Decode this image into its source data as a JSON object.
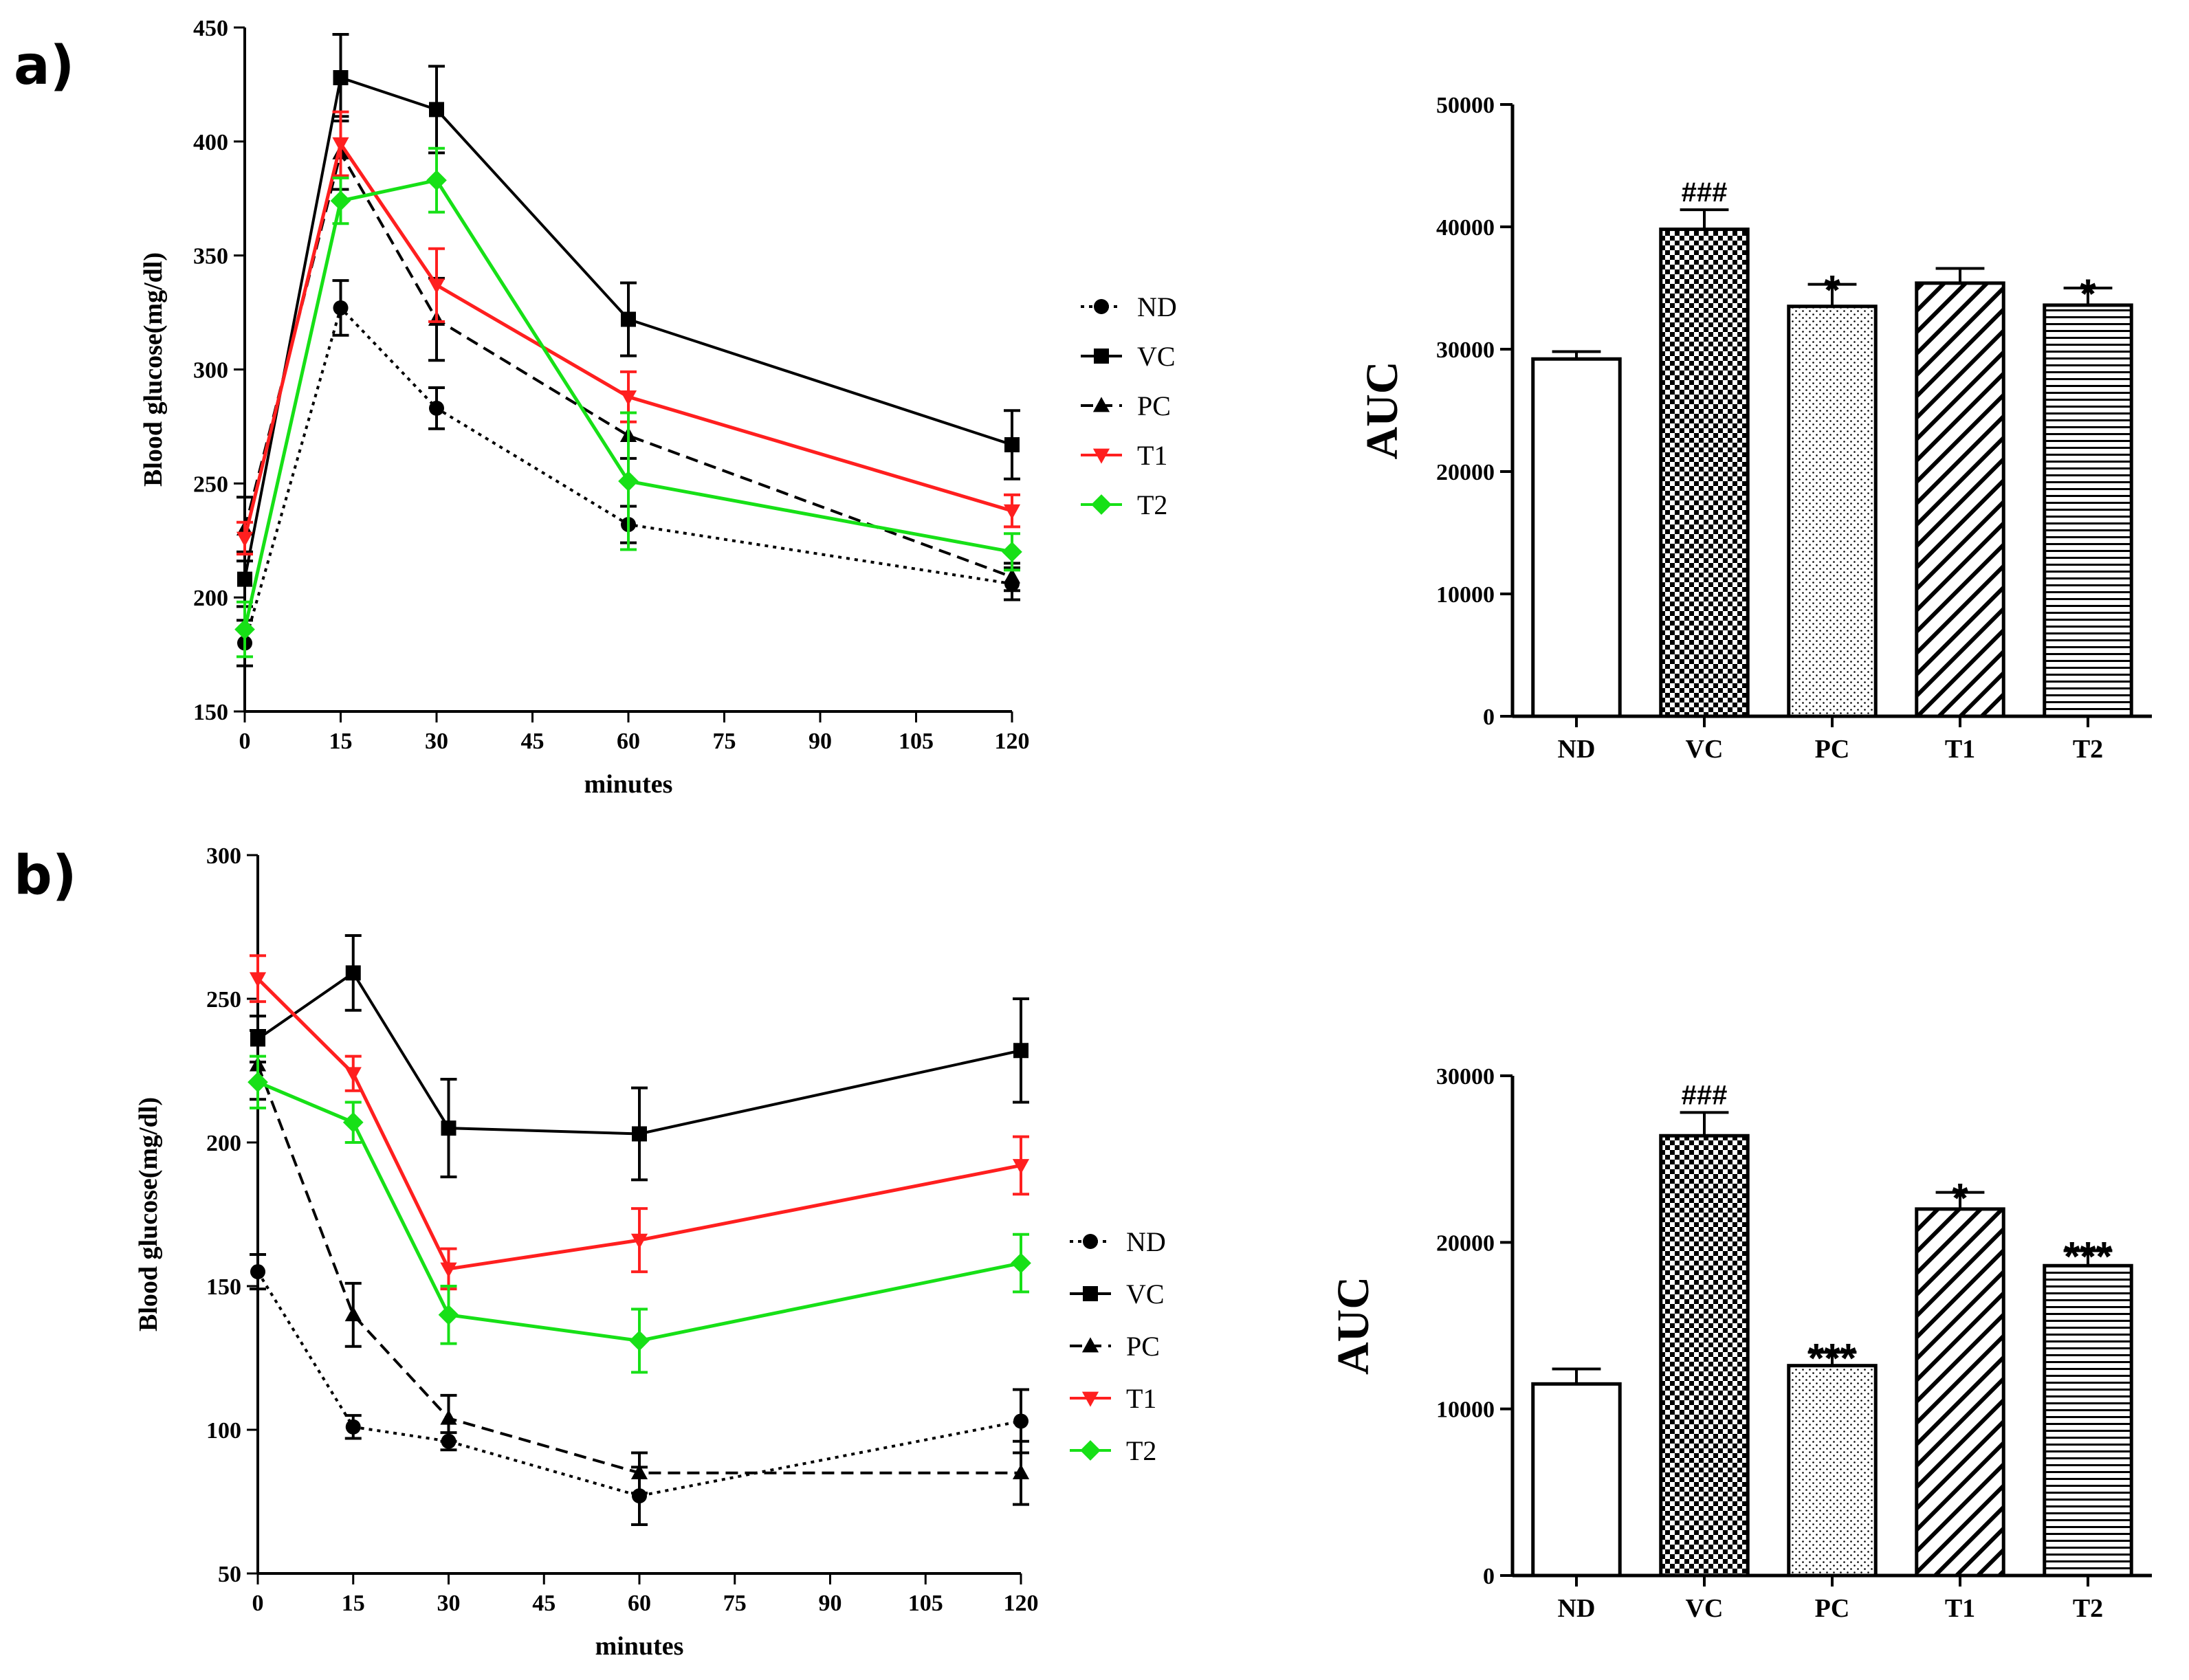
{
  "figure": {
    "panel_labels": [
      "a)",
      "b)"
    ],
    "colors": {
      "ND": "#000000",
      "VC": "#000000",
      "PC": "#000000",
      "T1": "#ff1f1f",
      "T2": "#17e017"
    }
  },
  "chart_data": [
    {
      "id": "a_line",
      "type": "line",
      "title": "",
      "xlabel": "minutes",
      "ylabel": "Blood glucose(mg/dl)",
      "x": [
        0,
        15,
        30,
        60,
        120
      ],
      "xticks": [
        0,
        15,
        30,
        45,
        60,
        75,
        90,
        105,
        120
      ],
      "ylim": [
        150,
        450
      ],
      "yticks": [
        150,
        200,
        250,
        300,
        350,
        400,
        450
      ],
      "legend": "right",
      "series": [
        {
          "name": "ND",
          "marker": "circle",
          "dash": "dot",
          "color": "#000000",
          "values": [
            180,
            327,
            283,
            232,
            206
          ],
          "errors": [
            10,
            12,
            9,
            8,
            7
          ]
        },
        {
          "name": "VC",
          "marker": "square",
          "dash": "solid",
          "color": "#000000",
          "values": [
            208,
            428,
            414,
            322,
            267
          ],
          "errors": [
            12,
            19,
            19,
            16,
            15
          ]
        },
        {
          "name": "PC",
          "marker": "triangle-up",
          "dash": "dash",
          "color": "#000000",
          "values": [
            230,
            395,
            322,
            271,
            209
          ],
          "errors": [
            14,
            16,
            18,
            10,
            6
          ]
        },
        {
          "name": "T1",
          "marker": "triangle-down",
          "dash": "solid",
          "color": "#ff1f1f",
          "values": [
            226,
            399,
            337,
            288,
            238
          ],
          "errors": [
            7,
            14,
            16,
            11,
            7
          ]
        },
        {
          "name": "T2",
          "marker": "diamond",
          "dash": "solid",
          "color": "#17e017",
          "values": [
            186,
            374,
            383,
            251,
            220
          ],
          "errors": [
            12,
            10,
            14,
            30,
            8
          ]
        }
      ]
    },
    {
      "id": "a_bar",
      "type": "bar",
      "title": "",
      "xlabel": "",
      "ylabel": "AUC",
      "categories": [
        "ND",
        "VC",
        "PC",
        "T1",
        "T2"
      ],
      "values": [
        29200,
        39800,
        33500,
        35400,
        33600
      ],
      "errors": [
        600,
        1600,
        1800,
        1200,
        1400
      ],
      "patterns": [
        "none",
        "checker",
        "dots",
        "diagonal",
        "horizontal"
      ],
      "annotations": [
        "",
        "###",
        "*",
        "",
        "*"
      ],
      "ylim": [
        0,
        50000
      ],
      "yticks": [
        0,
        10000,
        20000,
        30000,
        40000,
        50000
      ]
    },
    {
      "id": "b_line",
      "type": "line",
      "title": "",
      "xlabel": "minutes",
      "ylabel": "Blood glucose(mg/dl)",
      "x": [
        0,
        15,
        30,
        60,
        120
      ],
      "xticks": [
        0,
        15,
        30,
        45,
        60,
        75,
        90,
        105,
        120
      ],
      "ylim": [
        50,
        300
      ],
      "yticks": [
        50,
        100,
        150,
        200,
        250,
        300
      ],
      "legend": "right",
      "series": [
        {
          "name": "ND",
          "marker": "circle",
          "dash": "dot",
          "color": "#000000",
          "values": [
            155,
            101,
            96,
            77,
            103
          ],
          "errors": [
            6,
            4,
            3,
            10,
            11
          ]
        },
        {
          "name": "VC",
          "marker": "square",
          "dash": "solid",
          "color": "#000000",
          "values": [
            236,
            259,
            205,
            203,
            232
          ],
          "errors": [
            8,
            13,
            17,
            16,
            18
          ]
        },
        {
          "name": "PC",
          "marker": "triangle-up",
          "dash": "dash",
          "color": "#000000",
          "values": [
            227,
            140,
            104,
            85,
            85
          ],
          "errors": [
            12,
            11,
            8,
            7,
            11
          ]
        },
        {
          "name": "T1",
          "marker": "triangle-down",
          "dash": "solid",
          "color": "#ff1f1f",
          "values": [
            257,
            224,
            156,
            166,
            192
          ],
          "errors": [
            8,
            6,
            7,
            11,
            10
          ]
        },
        {
          "name": "T2",
          "marker": "diamond",
          "dash": "solid",
          "color": "#17e017",
          "values": [
            221,
            207,
            140,
            131,
            158
          ],
          "errors": [
            9,
            7,
            10,
            11,
            10
          ]
        }
      ]
    },
    {
      "id": "b_bar",
      "type": "bar",
      "title": "",
      "xlabel": "",
      "ylabel": "AUC",
      "categories": [
        "ND",
        "VC",
        "PC",
        "T1",
        "T2"
      ],
      "values": [
        11500,
        26400,
        12600,
        22000,
        18600
      ],
      "errors": [
        900,
        1400,
        800,
        1000,
        900
      ],
      "patterns": [
        "none",
        "checker",
        "dots",
        "diagonal",
        "horizontal"
      ],
      "annotations": [
        "",
        "###",
        "***",
        "*",
        "***"
      ],
      "ylim": [
        0,
        30000
      ],
      "yticks": [
        0,
        10000,
        20000,
        30000
      ]
    }
  ]
}
